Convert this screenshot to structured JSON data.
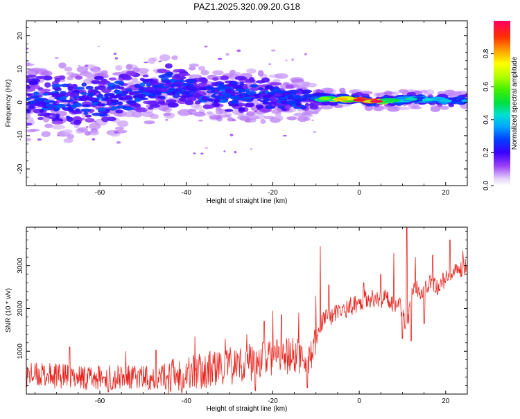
{
  "title": "PAZ1.2025.320.09.20.G18",
  "chart_data": [
    {
      "type": "heatmap",
      "xlabel": "Height of straight line (km)",
      "ylabel": "Frequency (Hz)",
      "xlim": [
        -77,
        25
      ],
      "ylim": [
        -25,
        24.5
      ],
      "xticks": [
        -60,
        -40,
        -20,
        0,
        20
      ],
      "xtick_labels": [
        "-60",
        "-40",
        "-20",
        "0",
        "20"
      ],
      "yticks": [
        -20,
        -10,
        0,
        10,
        20
      ],
      "ytick_labels": [
        "-20",
        "-10",
        "0",
        "10",
        "20"
      ],
      "colorbar": {
        "label": "Normalized spectral amplitude",
        "range": [
          0,
          1
        ],
        "ticks": [
          0,
          0.2,
          0.4,
          0.6,
          0.8
        ],
        "tick_labels": [
          "0.0",
          "0.2",
          "0.4",
          "0.6",
          "0.8"
        ]
      },
      "ridge": [
        {
          "x": -76,
          "f": 1,
          "width": 4,
          "amp": 0.3
        },
        {
          "x": -72,
          "f": 0.5,
          "width": 4,
          "amp": 0.32
        },
        {
          "x": -68,
          "f": 0.5,
          "width": 4,
          "amp": 0.3
        },
        {
          "x": -64,
          "f": 0.8,
          "width": 3.5,
          "amp": 0.32
        },
        {
          "x": -60,
          "f": 0.5,
          "width": 3.5,
          "amp": 0.3
        },
        {
          "x": -56,
          "f": 1.5,
          "width": 3.5,
          "amp": 0.32
        },
        {
          "x": -52,
          "f": 2,
          "width": 3.5,
          "amp": 0.3
        },
        {
          "x": -48,
          "f": 3.5,
          "width": 3,
          "amp": 0.3
        },
        {
          "x": -44,
          "f": 5,
          "width": 3,
          "amp": 0.28
        },
        {
          "x": -40,
          "f": 4,
          "width": 2.5,
          "amp": 0.32
        },
        {
          "x": -36,
          "f": 3,
          "width": 2.5,
          "amp": 0.3
        },
        {
          "x": -32,
          "f": 2.5,
          "width": 2.5,
          "amp": 0.32
        },
        {
          "x": -28,
          "f": 2.5,
          "width": 2.5,
          "amp": 0.3
        },
        {
          "x": -24,
          "f": 2,
          "width": 2.5,
          "amp": 0.3
        },
        {
          "x": -20,
          "f": 1.5,
          "width": 2.5,
          "amp": 0.28
        },
        {
          "x": -16,
          "f": 1,
          "width": 2,
          "amp": 0.3
        },
        {
          "x": -12,
          "f": 1,
          "width": 2,
          "amp": 0.32
        },
        {
          "x": -8,
          "f": 1.2,
          "width": 0.8,
          "amp": 0.62
        },
        {
          "x": -4,
          "f": 1,
          "width": 0.8,
          "amp": 0.8
        },
        {
          "x": 0,
          "f": 0.7,
          "width": 0.7,
          "amp": 0.96
        },
        {
          "x": 4,
          "f": 0.3,
          "width": 0.7,
          "amp": 0.98
        },
        {
          "x": 8,
          "f": 0.6,
          "width": 0.8,
          "amp": 0.5
        },
        {
          "x": 12,
          "f": 1,
          "width": 0.8,
          "amp": 0.45
        },
        {
          "x": 16,
          "f": 0.8,
          "width": 0.8,
          "amp": 0.42
        },
        {
          "x": 20,
          "f": 0.5,
          "width": 0.8,
          "amp": 0.4
        },
        {
          "x": 25,
          "f": 0.5,
          "width": 0.8,
          "amp": 0.38
        }
      ]
    },
    {
      "type": "line",
      "xlabel": "Height of straight line (km)",
      "ylabel": "SNR (10 * v/v)",
      "xlim": [
        -77,
        25
      ],
      "ylim": [
        0,
        3900
      ],
      "xticks": [
        -60,
        -40,
        -20,
        0,
        20
      ],
      "xtick_labels": [
        "-60",
        "-40",
        "-20",
        "0",
        "20"
      ],
      "yticks": [
        1000,
        2000,
        3000
      ],
      "ytick_labels": [
        "1000",
        "2000",
        "3000"
      ],
      "series": [
        {
          "name": "SNR",
          "color": "#e8211a",
          "x": [
            -77,
            -70,
            -60,
            -50,
            -45,
            -40,
            -35,
            -30,
            -25,
            -20,
            -15,
            -12,
            -10,
            -9,
            -8,
            -6,
            -4,
            -2,
            0,
            2,
            4,
            6,
            8,
            9,
            10,
            11,
            12,
            13,
            14,
            16,
            18,
            20,
            22,
            24,
            25
          ],
          "values": [
            450,
            420,
            380,
            380,
            420,
            480,
            560,
            650,
            750,
            850,
            900,
            850,
            1100,
            1600,
            1750,
            1850,
            1950,
            2050,
            2150,
            2250,
            2200,
            2250,
            2100,
            2200,
            1900,
            1600,
            2200,
            2500,
            2400,
            2600,
            2500,
            2700,
            2800,
            2950,
            3050
          ],
          "spikes": [
            {
              "x": -67,
              "value": 1100
            },
            {
              "x": -54,
              "value": 1000
            },
            {
              "x": -47,
              "value": 1030
            },
            {
              "x": -38,
              "value": 1350
            },
            {
              "x": -31,
              "value": 1300
            },
            {
              "x": -26,
              "value": 1400
            },
            {
              "x": -22,
              "value": 1700
            },
            {
              "x": -20,
              "value": 1950
            },
            {
              "x": -18,
              "value": 1850
            },
            {
              "x": -14,
              "value": 1900
            },
            {
              "x": -10,
              "value": 2300
            },
            {
              "x": -9,
              "value": 3460
            },
            {
              "x": -7,
              "value": 2550
            },
            {
              "x": 1,
              "value": 2600
            },
            {
              "x": 5,
              "value": 2800
            },
            {
              "x": 8,
              "value": 3300
            },
            {
              "x": 11,
              "value": 3900
            },
            {
              "x": 13,
              "value": 3200
            },
            {
              "x": 17,
              "value": 3250
            },
            {
              "x": 21,
              "value": 3600
            },
            {
              "x": 24,
              "value": 3350
            }
          ],
          "dips": [
            {
              "x": -58,
              "value": 50
            },
            {
              "x": -24,
              "value": 80
            },
            {
              "x": -12,
              "value": 150
            },
            {
              "x": 10,
              "value": 1300
            },
            {
              "x": 12,
              "value": 1250
            },
            {
              "x": 15,
              "value": 1650
            }
          ]
        }
      ]
    }
  ]
}
